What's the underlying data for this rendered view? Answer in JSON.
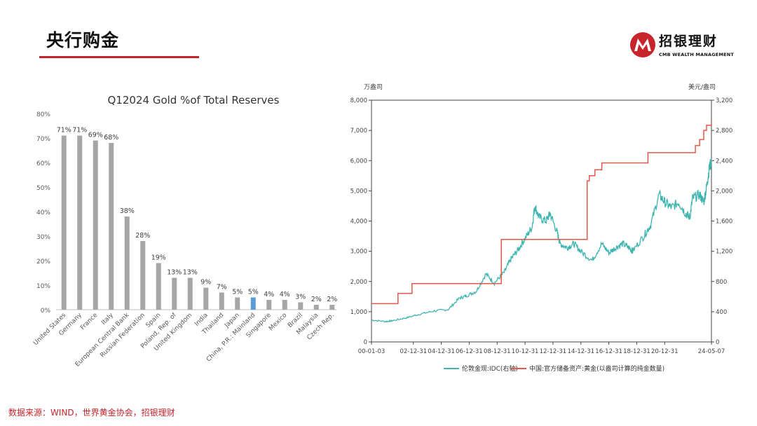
{
  "page": {
    "title": "央行购金",
    "logo_name": "招银理财",
    "logo_sub": "CMB WEALTH MANAGEMENT",
    "source": "数据来源：WIND，世界黄金协会，招银理财"
  },
  "chart_data": [
    {
      "type": "bar",
      "title": "Q12024 Gold %of Total Reserves",
      "categories": [
        "United States",
        "Germany",
        "France",
        "Italy",
        "European Central Bank",
        "Russian Federation",
        "Spain",
        "Poland, Rep. of",
        "United Kingdom",
        "India",
        "Thailand",
        "Japan",
        "China, P.R.: Mainland",
        "Singapore",
        "Mexico",
        "Brazil",
        "Malaysia",
        "Czech Rep."
      ],
      "values": [
        71,
        71,
        69,
        68,
        38,
        28,
        19,
        13,
        13,
        9,
        7,
        5,
        5,
        4,
        4,
        3,
        2,
        2
      ],
      "value_labels": [
        "71%",
        "71%",
        "69%",
        "68%",
        "38%",
        "28%",
        "19%",
        "13%",
        "13%",
        "9%",
        "7%",
        "5%",
        "5%",
        "4%",
        "4%",
        "3%",
        "2%",
        "2%"
      ],
      "ylim": [
        0,
        80
      ],
      "yticks": [
        "0%",
        "10%",
        "20%",
        "30%",
        "40%",
        "50%",
        "60%",
        "70%",
        "80%"
      ],
      "bar_color": "#a6a6a6",
      "highlight_color": "#5b9bd5",
      "highlight_index": 12
    },
    {
      "type": "line",
      "left_unit": "万盎司",
      "right_unit": "美元/盎司",
      "left_yticks": [
        "0",
        "1,000",
        "2,000",
        "3,000",
        "4,000",
        "5,000",
        "6,000",
        "7,000",
        "8,000"
      ],
      "right_yticks": [
        "0",
        "400",
        "800",
        "1,200",
        "1,600",
        "2,000",
        "2,400",
        "2,800",
        "3,200"
      ],
      "ylim_left": [
        0,
        8000
      ],
      "ylim_right": [
        0,
        3200
      ],
      "xticks": [
        "00-01-03",
        "02-12-31",
        "04-12-31",
        "06-12-31",
        "08-12-31",
        "10-12-31",
        "12-12-31",
        "14-12-31",
        "16-12-31",
        "18-12-31",
        "20-12-31",
        "24-05-07"
      ],
      "xlim_years": [
        2000.0,
        2024.35
      ],
      "series": [
        {
          "name": "伦敦金现:IDC(右轴)",
          "axis": "right",
          "color": "#3fb5b0",
          "x": [
            2000.0,
            2001.0,
            2001.5,
            2002.5,
            2003.5,
            2004.5,
            2005.5,
            2006.3,
            2006.8,
            2007.5,
            2008.2,
            2008.8,
            2009.5,
            2010.0,
            2010.5,
            2011.0,
            2011.5,
            2011.7,
            2012.0,
            2012.5,
            2012.8,
            2013.3,
            2013.5,
            2014.0,
            2014.5,
            2015.0,
            2015.8,
            2016.5,
            2017.0,
            2017.5,
            2018.0,
            2018.5,
            2018.7,
            2019.5,
            2020.0,
            2020.6,
            2021.0,
            2021.5,
            2022.0,
            2022.5,
            2022.8,
            2023.0,
            2023.5,
            2023.8,
            2024.0,
            2024.2,
            2024.35
          ],
          "y": [
            290,
            270,
            280,
            320,
            370,
            410,
            430,
            580,
            610,
            670,
            900,
            780,
            920,
            1100,
            1220,
            1370,
            1520,
            1800,
            1650,
            1600,
            1700,
            1450,
            1300,
            1250,
            1300,
            1200,
            1080,
            1300,
            1180,
            1250,
            1300,
            1240,
            1200,
            1400,
            1550,
            1950,
            1850,
            1780,
            1850,
            1700,
            1650,
            1900,
            1950,
            1850,
            2050,
            2300,
            2400
          ]
        },
        {
          "name": "中国:官方储备资产:黄金(以盎司计算的纯金数量)",
          "axis": "left",
          "color": "#e05a4b",
          "step": true,
          "x": [
            2000.0,
            2001.9,
            2002.9,
            2009.3,
            2015.45,
            2015.6,
            2016.0,
            2016.5,
            2018.9,
            2019.8,
            2022.9,
            2023.2,
            2023.5,
            2023.8,
            2024.0,
            2024.35
          ],
          "y": [
            1267,
            1608,
            1929,
            3389,
            5331,
            5500,
            5700,
            5924,
            5924,
            6264,
            6264,
            6500,
            6700,
            7000,
            7170,
            7280
          ]
        }
      ]
    }
  ]
}
